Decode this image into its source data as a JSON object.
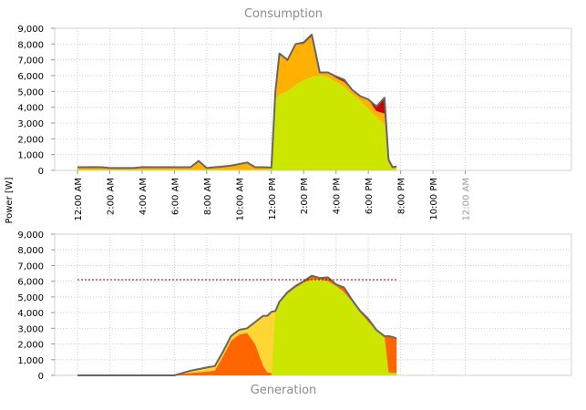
{
  "y_axis_label": "Power [W]",
  "colors": {
    "solar_green": "#cce600",
    "orange": "#ffb000",
    "red": "#cc0000",
    "deep_orange": "#ff6600",
    "yellow": "#ffd633",
    "total_line": "#666666",
    "reference_line": "#990000",
    "grid": "#cfcfcf"
  },
  "chart_data": [
    {
      "type": "area",
      "title": "Consumption",
      "ylim": [
        0,
        9000
      ],
      "yticks": [
        "0",
        "1,000",
        "2,000",
        "3,000",
        "4,000",
        "5,000",
        "6,000",
        "7,000",
        "8,000",
        "9,000"
      ],
      "xticks": [
        "12:00 AM",
        "2:00 AM",
        "4:00 AM",
        "6:00 AM",
        "8:00 AM",
        "10:00 AM",
        "12:00 PM",
        "2:00 PM",
        "4:00 PM",
        "6:00 PM",
        "8:00 PM",
        "10:00 PM",
        "12:00 AM"
      ],
      "grid": true,
      "x_hours": [
        0,
        0.5,
        1,
        1.5,
        2,
        2.5,
        3,
        3.5,
        4,
        4.5,
        5,
        5.5,
        6,
        6.5,
        7,
        7.5,
        8,
        8.5,
        9,
        9.5,
        10,
        10.5,
        11,
        11.5,
        12,
        12.25,
        12.5,
        13,
        13.5,
        14,
        14.5,
        15,
        15.5,
        16,
        16.5,
        17,
        17.5,
        18,
        18.5,
        19,
        19.25,
        19.5,
        19.75
      ],
      "series": [
        {
          "values": [
            50,
            50,
            60,
            50,
            50,
            50,
            50,
            50,
            60,
            50,
            50,
            50,
            50,
            50,
            50,
            50,
            50,
            50,
            50,
            50,
            50,
            50,
            50,
            50,
            80,
            4500,
            4800,
            5000,
            5400,
            5700,
            5900,
            6000,
            5900,
            5600,
            5300,
            4800,
            4400,
            3900,
            3400,
            2900,
            400,
            100,
            100
          ]
        },
        {
          "values": [
            150,
            150,
            150,
            150,
            100,
            100,
            100,
            100,
            150,
            150,
            150,
            150,
            150,
            150,
            150,
            550,
            100,
            150,
            200,
            250,
            350,
            450,
            150,
            150,
            100,
            500,
            2600,
            1900,
            2600,
            2300,
            2600,
            200,
            300,
            250,
            300,
            300,
            300,
            600,
            350,
            700,
            300,
            100,
            150
          ]
        },
        {
          "values": [
            0,
            0,
            0,
            0,
            0,
            0,
            0,
            0,
            0,
            0,
            0,
            0,
            0,
            0,
            0,
            0,
            0,
            0,
            0,
            0,
            0,
            0,
            0,
            0,
            0,
            0,
            0,
            100,
            0,
            100,
            100,
            0,
            0,
            100,
            150,
            0,
            0,
            0,
            300,
            1000,
            0,
            0,
            0
          ]
        },
        {
          "values": [
            200,
            200,
            210,
            200,
            150,
            150,
            150,
            150,
            210,
            200,
            200,
            200,
            200,
            200,
            200,
            600,
            150,
            200,
            250,
            300,
            400,
            500,
            200,
            200,
            180,
            5000,
            7400,
            7000,
            8000,
            8100,
            8600,
            6200,
            6200,
            5950,
            5750,
            5100,
            4700,
            4500,
            4050,
            4600,
            700,
            200,
            250
          ]
        }
      ]
    },
    {
      "type": "area",
      "title": "Generation",
      "ylim": [
        0,
        9000
      ],
      "yticks": [
        "0",
        "1,000",
        "2,000",
        "3,000",
        "4,000",
        "5,000",
        "6,000",
        "7,000",
        "8,000",
        "9,000"
      ],
      "grid": true,
      "reference_line": 6100,
      "x_hours": [
        0,
        6,
        6.5,
        7,
        7.5,
        8,
        8.5,
        9,
        9.5,
        10,
        10.5,
        11,
        11.5,
        11.75,
        12,
        12.25,
        12.5,
        13,
        13.5,
        14,
        14.5,
        15,
        15.5,
        16,
        16.5,
        17,
        17.5,
        18,
        18.5,
        19,
        19.25,
        19.5,
        19.75
      ],
      "series": [
        {
          "values": [
            0,
            0,
            0,
            0,
            0,
            0,
            0,
            0,
            0,
            0,
            0,
            0,
            0,
            0,
            0,
            4000,
            4600,
            5200,
            5600,
            5900,
            6100,
            6100,
            6000,
            5700,
            5300,
            4700,
            4000,
            3400,
            2900,
            2500,
            200,
            150,
            150
          ]
        },
        {
          "values": [
            0,
            0,
            100,
            150,
            200,
            250,
            300,
            1200,
            2200,
            2600,
            2700,
            2000,
            600,
            200,
            150,
            100,
            80,
            100,
            80,
            100,
            250,
            100,
            250,
            80,
            300,
            100,
            80,
            200,
            0,
            0,
            2300,
            2300,
            2200
          ]
        },
        {
          "values": [
            0,
            0,
            50,
            150,
            200,
            250,
            300,
            300,
            300,
            300,
            300,
            1400,
            3200,
            3600,
            3900,
            0,
            0,
            0,
            0,
            0,
            0,
            0,
            0,
            0,
            0,
            0,
            0,
            0,
            0,
            0,
            0,
            0,
            0
          ]
        },
        {
          "values": [
            0,
            0,
            150,
            300,
            400,
            500,
            600,
            1500,
            2500,
            2900,
            3000,
            3400,
            3800,
            3800,
            4050,
            4100,
            4700,
            5300,
            5700,
            6000,
            6350,
            6200,
            6250,
            5800,
            5600,
            4800,
            4100,
            3600,
            2900,
            2500,
            2500,
            2450,
            2350
          ]
        }
      ]
    }
  ]
}
